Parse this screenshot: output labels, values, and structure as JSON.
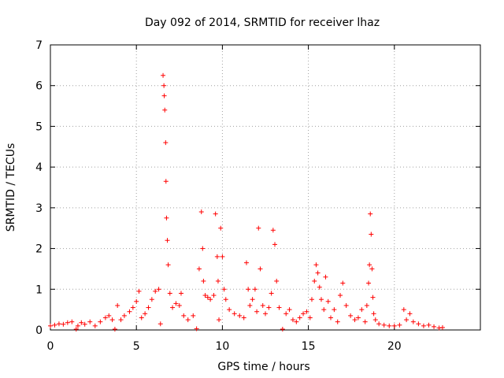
{
  "chart_data": {
    "type": "scatter",
    "title": "Day 092 of 2014, SRMTID for receiver lhaz",
    "xlabel": "GPS time / hours",
    "ylabel": "SRMTID / TECUs",
    "xlim": [
      0,
      25
    ],
    "ylim": [
      0,
      7
    ],
    "xticks": [
      0,
      5,
      10,
      15,
      20
    ],
    "xtick_labels": [
      "0",
      "5",
      "10",
      "15",
      "20"
    ],
    "yticks": [
      0,
      1,
      2,
      3,
      4,
      5,
      6,
      7
    ],
    "ytick_labels": [
      "0",
      "1",
      "2",
      "3",
      "4",
      "5",
      "6",
      "7"
    ],
    "grid": true,
    "marker": "+",
    "color": "#ff0000",
    "series": [
      {
        "name": "lhaz",
        "x": [
          0.0,
          0.25,
          0.5,
          0.75,
          1.0,
          1.25,
          1.5,
          1.6,
          1.8,
          2.0,
          2.3,
          2.6,
          2.9,
          3.2,
          3.4,
          3.6,
          3.75,
          3.9,
          4.1,
          4.3,
          4.6,
          4.8,
          5.0,
          5.15,
          5.3,
          5.5,
          5.7,
          5.9,
          6.1,
          6.3,
          6.4,
          6.55,
          6.6,
          6.62,
          6.65,
          6.7,
          6.72,
          6.75,
          6.8,
          6.85,
          6.95,
          7.1,
          7.3,
          7.5,
          7.6,
          7.75,
          8.0,
          8.3,
          8.5,
          8.65,
          8.78,
          8.85,
          8.9,
          9.0,
          9.15,
          9.3,
          9.5,
          9.6,
          9.7,
          9.75,
          9.8,
          9.9,
          10.0,
          10.1,
          10.2,
          10.4,
          10.7,
          11.0,
          11.25,
          11.4,
          11.5,
          11.6,
          11.75,
          11.9,
          12.0,
          12.1,
          12.2,
          12.35,
          12.5,
          12.7,
          12.85,
          12.95,
          13.05,
          13.15,
          13.3,
          13.5,
          13.7,
          13.9,
          14.1,
          14.3,
          14.5,
          14.7,
          14.9,
          15.1,
          15.2,
          15.35,
          15.45,
          15.55,
          15.65,
          15.75,
          15.9,
          16.0,
          16.15,
          16.3,
          16.5,
          16.7,
          16.85,
          17.0,
          17.2,
          17.45,
          17.7,
          17.9,
          18.1,
          18.3,
          18.4,
          18.5,
          18.55,
          18.6,
          18.65,
          18.7,
          18.75,
          18.8,
          18.9,
          19.1,
          19.4,
          19.7,
          20.0,
          20.3,
          20.55,
          20.7,
          20.9,
          21.1,
          21.4,
          21.7,
          22.0,
          22.3,
          22.6,
          22.8
        ],
        "y": [
          0.1,
          0.12,
          0.15,
          0.14,
          0.18,
          0.2,
          0.02,
          0.1,
          0.18,
          0.14,
          0.2,
          0.1,
          0.2,
          0.3,
          0.35,
          0.25,
          0.02,
          0.6,
          0.25,
          0.35,
          0.45,
          0.55,
          0.7,
          0.95,
          0.3,
          0.4,
          0.55,
          0.75,
          0.95,
          1.0,
          0.15,
          6.25,
          6.0,
          5.75,
          5.4,
          4.6,
          3.65,
          2.75,
          2.2,
          1.6,
          0.9,
          0.55,
          0.65,
          0.6,
          0.9,
          0.35,
          0.25,
          0.35,
          0.03,
          1.5,
          2.9,
          2.0,
          1.2,
          0.85,
          0.8,
          0.75,
          0.85,
          2.85,
          1.8,
          1.2,
          0.25,
          2.5,
          1.8,
          1.0,
          0.75,
          0.5,
          0.4,
          0.35,
          0.3,
          1.65,
          1.0,
          0.6,
          0.75,
          1.0,
          0.45,
          2.5,
          1.5,
          0.6,
          0.4,
          0.55,
          0.9,
          2.45,
          2.1,
          1.2,
          0.55,
          0.02,
          0.4,
          0.5,
          0.25,
          0.2,
          0.3,
          0.4,
          0.45,
          0.3,
          0.75,
          1.2,
          1.6,
          1.4,
          1.05,
          0.75,
          0.5,
          1.3,
          0.7,
          0.3,
          0.5,
          0.2,
          0.85,
          1.15,
          0.6,
          0.35,
          0.25,
          0.3,
          0.5,
          0.2,
          0.6,
          1.15,
          1.6,
          2.85,
          2.35,
          1.5,
          0.8,
          0.4,
          0.25,
          0.15,
          0.12,
          0.1,
          0.1,
          0.12,
          0.5,
          0.25,
          0.4,
          0.2,
          0.15,
          0.1,
          0.12,
          0.08,
          0.05,
          0.06
        ]
      }
    ]
  }
}
